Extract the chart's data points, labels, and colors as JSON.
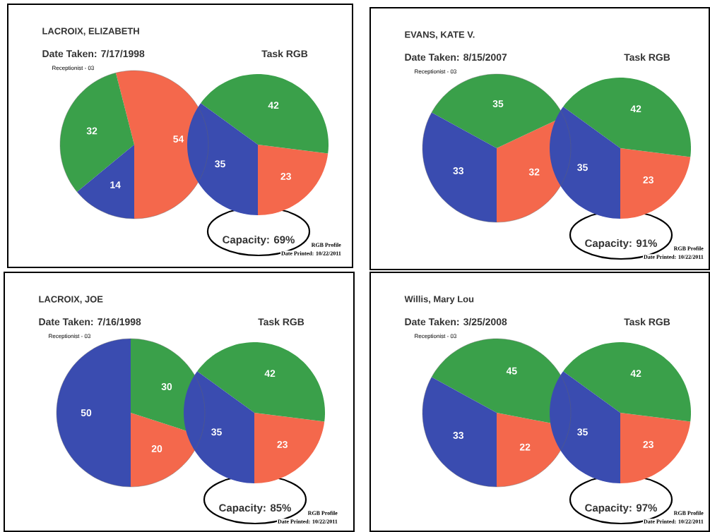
{
  "chart_data": [
    {
      "type": "pie",
      "title": "LACROIX, ELIZABETH",
      "subtitle": "Date Taken: 7/17/1998",
      "annotations": [
        "Receptionist - 03"
      ],
      "categories": [
        null,
        null,
        null
      ],
      "values": [
        54,
        32,
        14
      ],
      "colors": [
        "#f4684c",
        "#3aa04a",
        "#3a4cb0"
      ],
      "data_labels": true
    },
    {
      "type": "pie",
      "title": "Task RGB",
      "annotations": [
        "Capacity: 69%",
        "RGB Profile",
        "Date Printed: 10/22/2011"
      ],
      "categories": [
        null,
        null,
        null
      ],
      "values": [
        23,
        42,
        35
      ],
      "colors": [
        "#f4684c",
        "#3aa04a",
        "#3a4cb0"
      ],
      "data_labels": true
    },
    {
      "type": "pie",
      "title": "EVANS, KATE V.",
      "subtitle": "Date Taken: 8/15/2007",
      "annotations": [
        "Receptionist - 03"
      ],
      "categories": [
        null,
        null,
        null
      ],
      "values": [
        32,
        35,
        33
      ],
      "colors": [
        "#f4684c",
        "#3aa04a",
        "#3a4cb0"
      ],
      "data_labels": true
    },
    {
      "type": "pie",
      "title": "Task RGB",
      "annotations": [
        "Capacity: 91%",
        "RGB Profile",
        "Date Printed: 10/22/2011"
      ],
      "categories": [
        null,
        null,
        null
      ],
      "values": [
        23,
        42,
        35
      ],
      "colors": [
        "#f4684c",
        "#3aa04a",
        "#3a4cb0"
      ],
      "data_labels": true
    },
    {
      "type": "pie",
      "title": "LACROIX, JOE",
      "subtitle": "Date Taken: 7/16/1998",
      "annotations": [
        "Receptionist - 03"
      ],
      "categories": [
        null,
        null,
        null
      ],
      "values": [
        20,
        30,
        50
      ],
      "colors": [
        "#f4684c",
        "#3aa04a",
        "#3a4cb0"
      ],
      "data_labels": true
    },
    {
      "type": "pie",
      "title": "Task RGB",
      "annotations": [
        "Capacity: 85%",
        "RGB Profile",
        "Date Printed: 10/22/2011"
      ],
      "categories": [
        null,
        null,
        null
      ],
      "values": [
        23,
        42,
        35
      ],
      "colors": [
        "#f4684c",
        "#3aa04a",
        "#3a4cb0"
      ],
      "data_labels": true
    },
    {
      "type": "pie",
      "title": "Willis, Mary Lou",
      "subtitle": "Date Taken: 3/25/2008",
      "annotations": [
        "Receptionist - 03"
      ],
      "categories": [
        null,
        null,
        null
      ],
      "values": [
        22,
        45,
        33
      ],
      "colors": [
        "#f4684c",
        "#3aa04a",
        "#3a4cb0"
      ],
      "data_labels": true
    },
    {
      "type": "pie",
      "title": "Task RGB",
      "annotations": [
        "Capacity: 97%",
        "RGB Profile",
        "Date Printed: 10/22/2011"
      ],
      "categories": [
        null,
        null,
        null
      ],
      "values": [
        23,
        42,
        35
      ],
      "colors": [
        "#f4684c",
        "#3aa04a",
        "#3a4cb0"
      ],
      "data_labels": true
    }
  ]
}
